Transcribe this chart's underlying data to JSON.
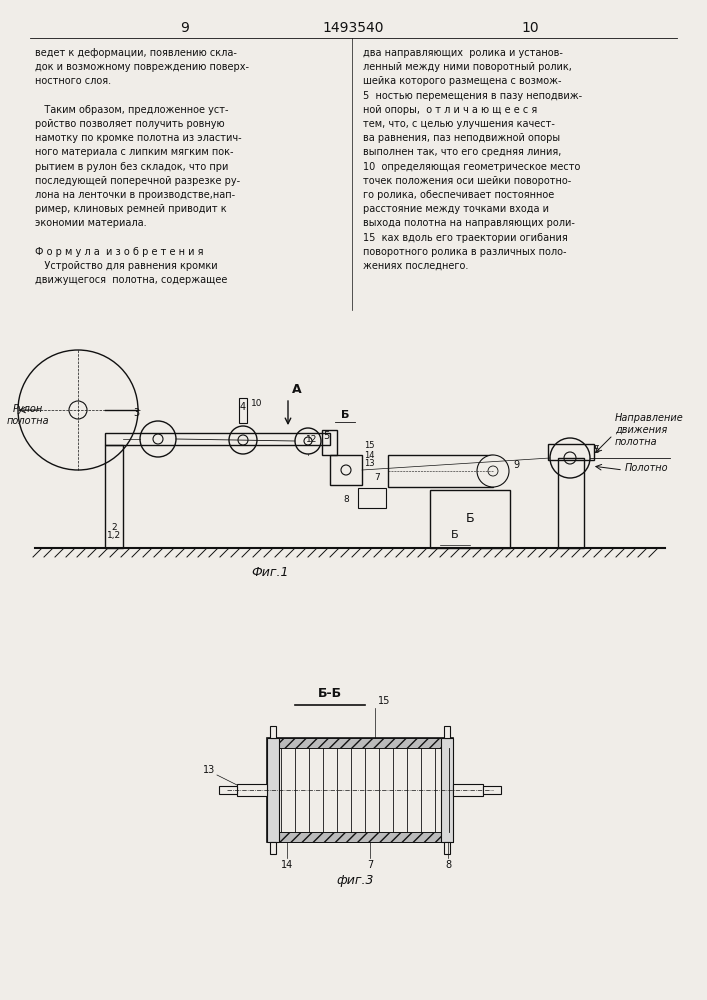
{
  "page_bg": "#f0ede8",
  "text_color": "#111111",
  "line_color": "#111111",
  "page_num_left": "9",
  "page_num_center": "1493540",
  "page_num_right": "10",
  "left_col": [
    "ведет к деформации, появлению скла-",
    "док и возможному повреждению поверх-",
    "ностного слоя.",
    "",
    "   Таким образом, предложенное уст-",
    "ройство позволяет получить ровную",
    "намотку по кромке полотна из эластич-",
    "ного материала с липким мягким пок-",
    "рытием в рулон без складок, что при",
    "последующей поперечной разрезке ру-",
    "лона на ленточки в производстве,нап-",
    "ример, клиновых ремней приводит к",
    "экономии материала.",
    "",
    "Ф о р м у л а  и з о б р е т е н и я",
    "   Устройство для равнения кромки",
    "движущегося  полотна, содержащее"
  ],
  "right_col": [
    "два направляющих  ролика и установ-",
    "ленный между ними поворотный ролик,",
    "шейка которого размещена с возмож-",
    "5  ностью перемещения в пазу неподвиж-",
    "ной опоры,  о т л и ч а ю щ е е с я",
    "тем, что, с целью улучшения качест-",
    "ва равнения, паз неподвижной опоры",
    "выполнен так, что его средняя линия,",
    "10  определяющая геометрическое место",
    "точек положения оси шейки поворотно-",
    "го ролика, обеспечивает постоянное",
    "расстояние между точками входа и",
    "выхода полотна на направляющих роли-",
    "15  ках вдоль его траектории огибания",
    "поворотного ролика в различных поло-",
    "жениях последнего."
  ],
  "fig1_label": "Фиг.1",
  "fig3_label": "фиг.3",
  "bb_label": "Б-Б"
}
